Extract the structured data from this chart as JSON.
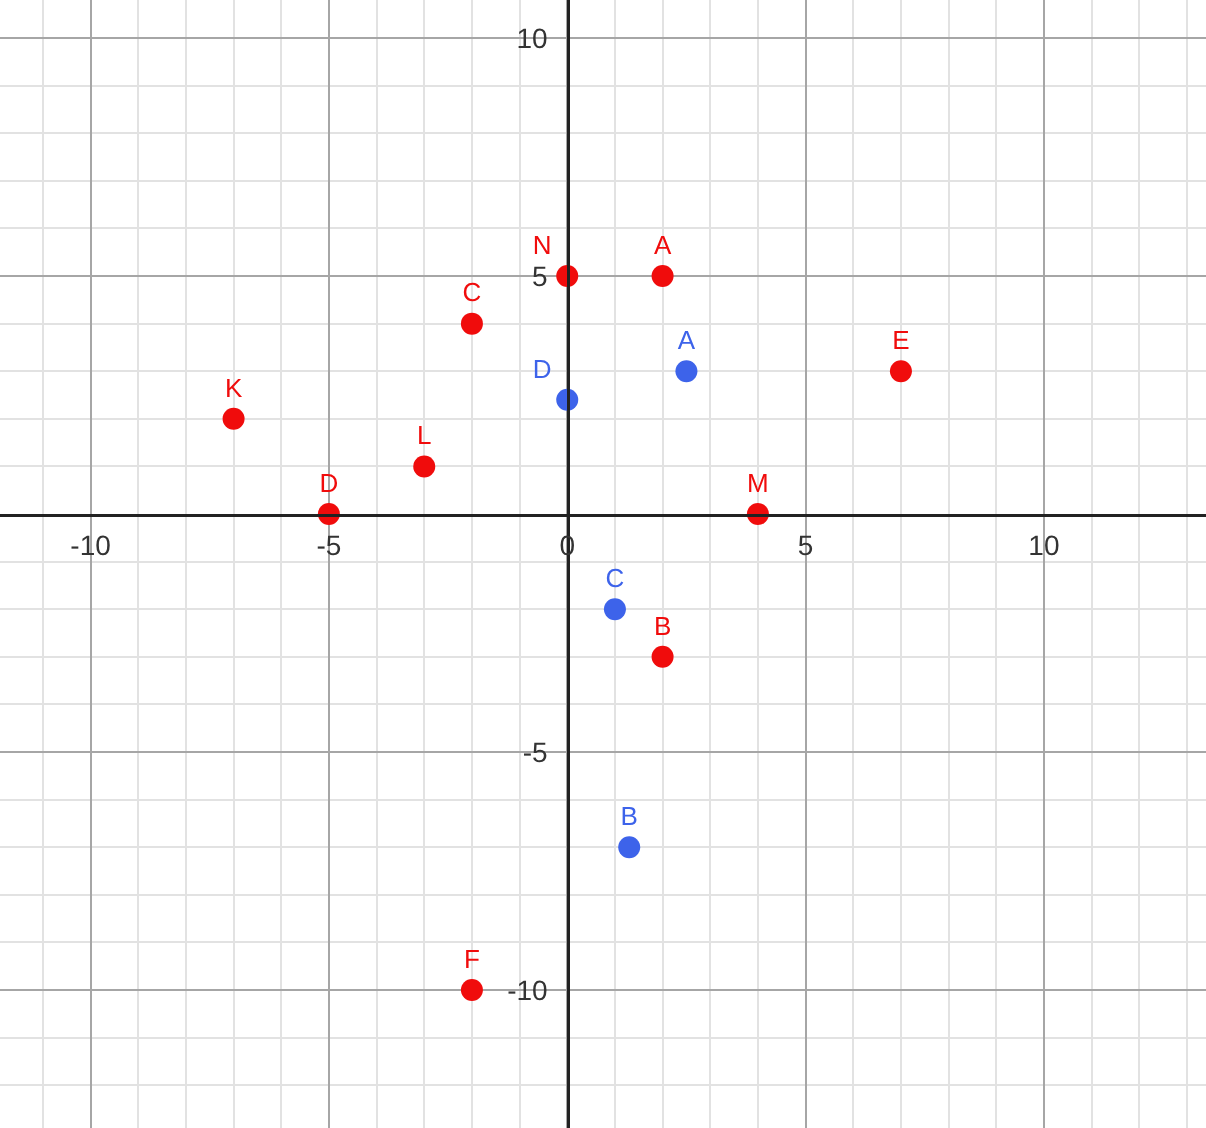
{
  "chart_data": {
    "type": "scatter",
    "marker": "circle",
    "grid": true,
    "xlim": [
      -11.9,
      13.4
    ],
    "ylim": [
      -12.9,
      10.8
    ],
    "xticks": [
      {
        "value": -11,
        "label": null
      },
      -10,
      {
        "value": -9,
        "label": null
      },
      {
        "value": -8,
        "label": null
      },
      {
        "value": -7,
        "label": null
      },
      {
        "value": -6,
        "label": null
      },
      -5,
      {
        "value": -4,
        "label": null
      },
      {
        "value": -3,
        "label": null
      },
      {
        "value": -2,
        "label": null
      },
      {
        "value": -1,
        "label": null
      },
      0,
      {
        "value": 1,
        "label": null
      },
      {
        "value": 2,
        "label": null
      },
      {
        "value": 3,
        "label": null
      },
      {
        "value": 4,
        "label": null
      },
      5,
      {
        "value": 6,
        "label": null
      },
      {
        "value": 7,
        "label": null
      },
      {
        "value": 8,
        "label": null
      },
      {
        "value": 9,
        "label": null
      },
      10,
      {
        "value": 11,
        "label": null
      },
      {
        "value": 12,
        "label": null
      },
      {
        "value": 13,
        "label": null
      }
    ],
    "yticks": [
      {
        "value": -12,
        "label": null
      },
      {
        "value": -11,
        "label": null
      },
      -10,
      {
        "value": -9,
        "label": null
      },
      {
        "value": -8,
        "label": null
      },
      {
        "value": -7,
        "label": null
      },
      {
        "value": -6,
        "label": null
      },
      -5,
      {
        "value": -4,
        "label": null
      },
      {
        "value": -3,
        "label": null
      },
      {
        "value": -2,
        "label": null
      },
      {
        "value": -1,
        "label": null
      },
      {
        "value": 1,
        "label": null
      },
      {
        "value": 2,
        "label": null
      },
      {
        "value": 3,
        "label": null
      },
      {
        "value": 4,
        "label": null
      },
      5,
      {
        "value": 6,
        "label": null
      },
      {
        "value": 7,
        "label": null
      },
      {
        "value": 8,
        "label": null
      },
      {
        "value": 9,
        "label": null
      },
      10
    ],
    "series": [
      {
        "name": "N",
        "color": "#f00c0c",
        "x": [
          0
        ],
        "values": [
          5
        ]
      },
      {
        "name": "A",
        "color": "#f00c0c",
        "x": [
          2
        ],
        "values": [
          5
        ]
      },
      {
        "name": "C",
        "color": "#f00c0c",
        "x": [
          -2
        ],
        "values": [
          4
        ]
      },
      {
        "name": "K",
        "color": "#f00c0c",
        "x": [
          -7
        ],
        "values": [
          2
        ]
      },
      {
        "name": "L",
        "color": "#f00c0c",
        "x": [
          -3
        ],
        "values": [
          1
        ]
      },
      {
        "name": "D",
        "color": "#f00c0c",
        "x": [
          -5
        ],
        "values": [
          0
        ]
      },
      {
        "name": "M",
        "color": "#f00c0c",
        "x": [
          4
        ],
        "values": [
          0
        ]
      },
      {
        "name": "E",
        "color": "#f00c0c",
        "x": [
          7
        ],
        "values": [
          3
        ]
      },
      {
        "name": "B",
        "color": "#f00c0c",
        "x": [
          2
        ],
        "values": [
          -3
        ]
      },
      {
        "name": "F",
        "color": "#f00c0c",
        "x": [
          -2
        ],
        "values": [
          -10
        ]
      },
      {
        "name": "A",
        "color": "#3d63ea",
        "x": [
          2.5
        ],
        "values": [
          3
        ]
      },
      {
        "name": "D",
        "color": "#3d63ea",
        "x": [
          0
        ],
        "values": [
          2.4
        ]
      },
      {
        "name": "C",
        "color": "#3d63ea",
        "x": [
          1
        ],
        "values": [
          -2
        ]
      },
      {
        "name": "B",
        "color": "#3d63ea",
        "x": [
          1.3
        ],
        "values": [
          -7
        ]
      }
    ]
  }
}
